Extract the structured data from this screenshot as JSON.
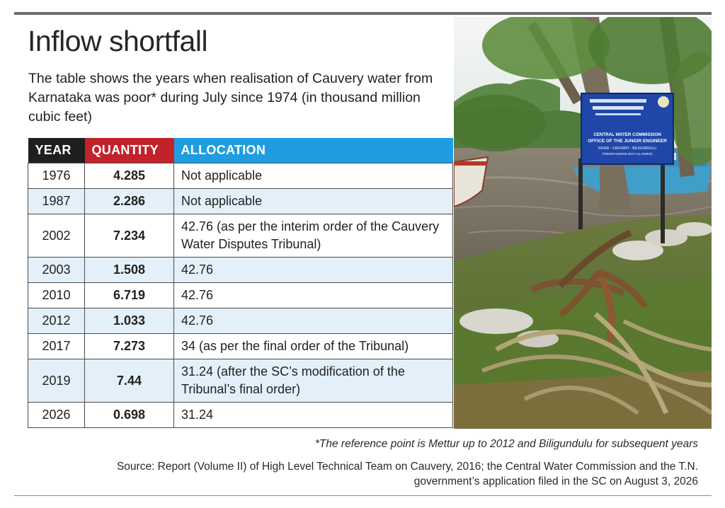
{
  "header": {
    "title": "Inflow shortfall",
    "subtitle": "The table shows the years when realisation of Cauvery water from Karnataka was poor* during July since 1974 (in thousand million cubic feet)"
  },
  "table": {
    "columns": [
      "YEAR",
      "QUANTITY",
      "ALLOCATION"
    ],
    "rows": [
      {
        "year": "1976",
        "quantity": "4.285",
        "allocation": "Not applicable"
      },
      {
        "year": "1987",
        "quantity": "2.286",
        "allocation": "Not applicable"
      },
      {
        "year": "2002",
        "quantity": "7.234",
        "allocation": "42.76 (as per the interim order of the Cauvery Water Disputes Tribunal)"
      },
      {
        "year": "2003",
        "quantity": "1.508",
        "allocation": "42.76"
      },
      {
        "year": "2010",
        "quantity": "6.719",
        "allocation": "42.76"
      },
      {
        "year": "2012",
        "quantity": "1.033",
        "allocation": "42.76"
      },
      {
        "year": "2017",
        "quantity": "7.273",
        "allocation": "34 (as per the final order of the Tribunal)"
      },
      {
        "year": "2019",
        "quantity": "7.44",
        "allocation": "31.24 (after the SC’s modification of the Tribunal’s final order)"
      },
      {
        "year": "2026",
        "quantity": "0.698",
        "allocation": "31.24"
      }
    ]
  },
  "photo": {
    "sign": {
      "line1": "CENTRAL WATER COMMISSION",
      "line2": "OFFICE OF THE JUNIOR ENGINEER",
      "line3": "RIVER - CAUVERY - BILIGUNDULU",
      "line4": "(TRESPASSERS NOT ALLOWED)"
    }
  },
  "footnote": "*The reference point is Mettur up to 2012 and Biligundulu for subsequent years",
  "source": "Source: Report (Volume II) of High Level Technical Team on Cauvery, 2016; the Central Water Commission and the T.N. government’s application filed in the SC on August 3, 2026",
  "colors": {
    "year_header": "#1f1f1f",
    "quantity_header": "#c3222b",
    "allocation_header": "#1f9de0",
    "alt_row": "#e3f0fa"
  }
}
